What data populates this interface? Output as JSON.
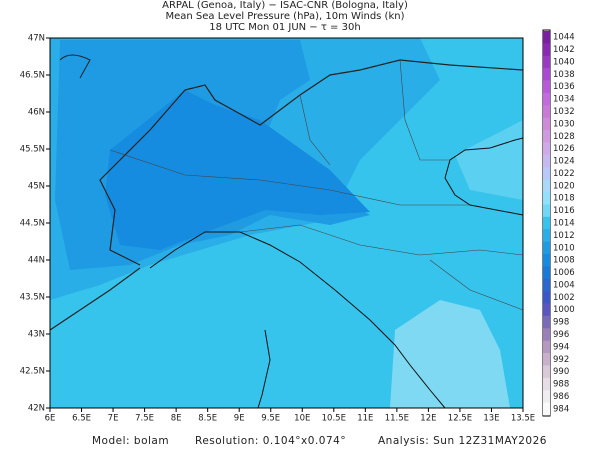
{
  "header": {
    "lines": [
      "ARPAL (Genoa, Italy)  −  ISAC-CNR (Bologna, Italy)",
      "Mean Sea Level Pressure (hPa), 10m Winds (kn)",
      "18 UTC Mon 01 JUN  −  τ = 30h"
    ]
  },
  "map": {
    "lon_labels": [
      "6E",
      "6.5E",
      "7E",
      "7.5E",
      "8E",
      "8.5E",
      "9E",
      "9.5E",
      "10E",
      "10.5E",
      "11E",
      "11.5E",
      "12E",
      "12.5E",
      "13E",
      "13.5E"
    ],
    "lat_labels": [
      "47N",
      "46.5N",
      "46N",
      "45.5N",
      "45N",
      "44.5N",
      "44N",
      "43.5N",
      "43N",
      "42.5N",
      "42N"
    ]
  },
  "colorbar": {
    "levels": [
      "1044",
      "1042",
      "1040",
      "1038",
      "1036",
      "1034",
      "1032",
      "1030",
      "1028",
      "1026",
      "1024",
      "1022",
      "1020",
      "1018",
      "1016",
      "1014",
      "1012",
      "1010",
      "1008",
      "1006",
      "1004",
      "1002",
      "1000",
      "998",
      "996",
      "994",
      "992",
      "990",
      "988",
      "986",
      "984"
    ]
  },
  "footer": {
    "model": "Model:  bolam",
    "resolution": "Resolution: 0.104°x0.074°",
    "analysis": "Analysis: Sun 12Z31MAY2026"
  }
}
